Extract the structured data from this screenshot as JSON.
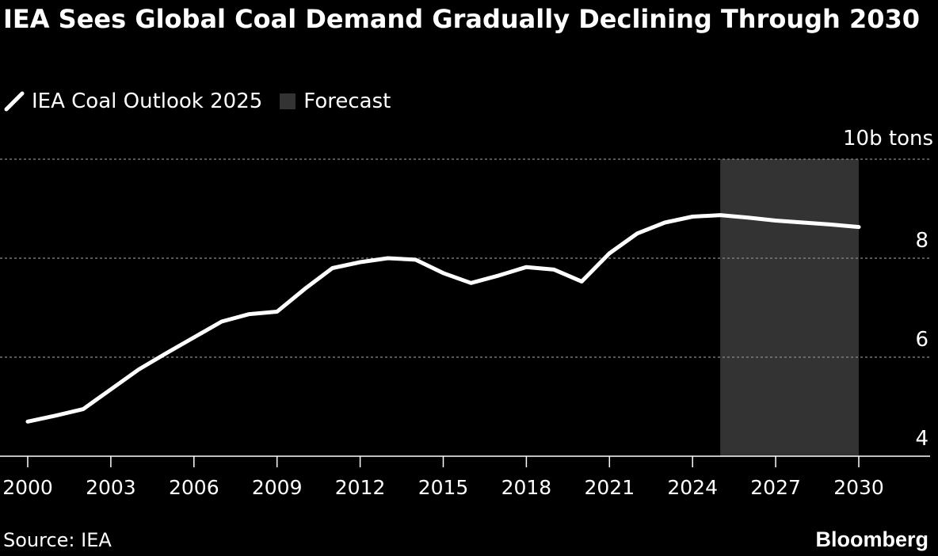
{
  "title": "IEA Sees Global Coal Demand Gradually Declining Through 2030",
  "legend": {
    "series_label": "IEA Coal Outlook 2025",
    "forecast_label": "Forecast"
  },
  "source": "Source: IEA",
  "brand": "Bloomberg",
  "colors": {
    "background": "#000000",
    "line": "#ffffff",
    "forecast_band": "#333333",
    "grid": "#888888"
  },
  "chart_data": {
    "type": "line",
    "title": "IEA Sees Global Coal Demand Gradually Declining Through 2030",
    "unit_label": "10b tons",
    "xlabel": "",
    "ylabel": "",
    "xlim": [
      2000,
      2030
    ],
    "ylim": [
      4,
      10
    ],
    "x_ticks": [
      2000,
      2003,
      2006,
      2009,
      2012,
      2015,
      2018,
      2021,
      2024,
      2027,
      2030
    ],
    "y_ticks": [
      4,
      6,
      8
    ],
    "grid": "horizontal dotted",
    "legend_placement": "top-left",
    "forecast_range": [
      2025,
      2030
    ],
    "series": [
      {
        "name": "IEA Coal Outlook 2025",
        "x": [
          2000,
          2001,
          2002,
          2003,
          2004,
          2005,
          2006,
          2007,
          2008,
          2009,
          2010,
          2011,
          2012,
          2013,
          2014,
          2015,
          2016,
          2017,
          2018,
          2019,
          2020,
          2021,
          2022,
          2023,
          2024,
          2025,
          2026,
          2027,
          2028,
          2029,
          2030
        ],
        "y": [
          4.7,
          4.82,
          4.95,
          5.35,
          5.75,
          6.08,
          6.4,
          6.72,
          6.87,
          6.92,
          7.38,
          7.8,
          7.92,
          8.0,
          7.97,
          7.7,
          7.5,
          7.65,
          7.82,
          7.77,
          7.53,
          8.1,
          8.5,
          8.72,
          8.84,
          8.87,
          8.82,
          8.76,
          8.72,
          8.68,
          8.63
        ]
      }
    ]
  }
}
